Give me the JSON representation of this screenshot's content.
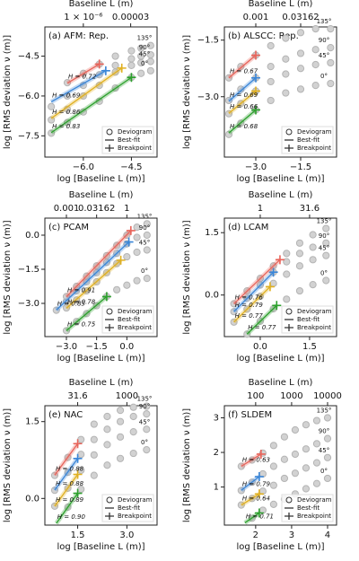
{
  "chart_data": [
    {
      "type": "scatter",
      "title": "(a) AFM: Rep.",
      "x_label": "log [Baseline L (m)]",
      "y_label": "log [RMS deviation ν (m)]",
      "x2_label": "Baseline L (m)",
      "xlim": [
        -7.2,
        -3.7
      ],
      "ylim": [
        -8.3,
        -3.4
      ],
      "xticks": [
        {
          "value": -6,
          "label": "−6.0"
        },
        {
          "value": -4.5,
          "label": "−4.5"
        }
      ],
      "yticks": [
        {
          "value": -4.5,
          "label": "−4.5"
        },
        {
          "value": -6,
          "label": "−6.0"
        },
        {
          "value": -7.5,
          "label": "−7.5"
        }
      ],
      "x2ticks": [
        {
          "value": -6,
          "label": "1 × 10⁻⁶"
        },
        {
          "value": -4.523,
          "label": "0.00003"
        }
      ],
      "x": [
        -7.0,
        -6.5,
        -6.0,
        -5.5,
        -5.0,
        -4.5,
        -4.2,
        -3.9
      ],
      "series": [
        {
          "name": "0°",
          "color": "#2ca02c",
          "values": [
            -7.4,
            -7.0,
            -6.6,
            -6.2,
            -5.7,
            -5.3,
            -5.15,
            -5.05
          ],
          "fit": {
            "x": [
              -7.0,
              -4.5
            ],
            "y": [
              -7.38,
              -5.3
            ]
          },
          "breakpoint": {
            "x": -4.5,
            "y": -5.3
          },
          "h_label": "H = 0.83"
        },
        {
          "name": "45°",
          "color": "#e0b020",
          "values": [
            -6.9,
            -6.5,
            -6.0,
            -5.6,
            -5.1,
            -4.85,
            -4.75,
            -4.7
          ],
          "fit": {
            "x": [
              -7.0,
              -4.8
            ],
            "y": [
              -6.84,
              -4.95
            ]
          },
          "breakpoint": {
            "x": -4.8,
            "y": -4.95
          },
          "h_label": "H = 0.86"
        },
        {
          "name": "90°",
          "color": "#3a86d8",
          "values": [
            -6.4,
            -6.0,
            -5.6,
            -5.2,
            -4.85,
            -4.6,
            -4.5,
            -4.45
          ],
          "fit": {
            "x": [
              -7.0,
              -5.3
            ],
            "y": [
              -6.22,
              -5.05
            ]
          },
          "breakpoint": {
            "x": -5.3,
            "y": -5.05
          },
          "h_label": "H = 0.69"
        },
        {
          "name": "135°",
          "color": "#e8645a",
          "values": [
            null,
            -5.5,
            -5.15,
            -4.8,
            -4.5,
            -4.3,
            -4.2,
            -4.1
          ],
          "fit": {
            "x": [
              -6.5,
              -5.5
            ],
            "y": [
              -5.52,
              -4.8
            ]
          },
          "breakpoint": {
            "x": -5.5,
            "y": -4.8
          },
          "h_label": "H = 0.72"
        }
      ],
      "legend": [
        "Deviogram",
        "Best-fit",
        "Breakpoint"
      ],
      "legend_loc": "lower right"
    },
    {
      "type": "scatter",
      "title": "(b) ALSCC: Rep.",
      "x_label": "log [Baseline L (m)]",
      "y_label": "log [RMS deviation ν (m)]",
      "x2_label": "Baseline L (m)",
      "xlim": [
        -4.05,
        -0.3
      ],
      "ylim": [
        -4.6,
        -1.15
      ],
      "xticks": [
        {
          "value": -3,
          "label": "−3.0"
        },
        {
          "value": -1.5,
          "label": "−1.5"
        }
      ],
      "yticks": [
        {
          "value": -1.5,
          "label": "−1.5"
        },
        {
          "value": -3,
          "label": "−3.0"
        }
      ],
      "x2ticks": [
        {
          "value": -3,
          "label": "0.001"
        },
        {
          "value": -1.5,
          "label": "0.03162"
        }
      ],
      "x": [
        -3.9,
        -3.5,
        -3.0,
        -2.5,
        -2.0,
        -1.5,
        -1.0,
        -0.5
      ],
      "series": [
        {
          "name": "0°",
          "color": "#2ca02c",
          "values": [
            -4.0,
            -3.7,
            -3.35,
            -3.1,
            -2.9,
            -2.8,
            -2.7,
            -2.65
          ],
          "fit": {
            "x": [
              -3.9,
              -3.0
            ],
            "y": [
              -3.96,
              -3.35
            ]
          },
          "breakpoint": {
            "x": -3.0,
            "y": -3.35
          },
          "h_label": "H = 0.68"
        },
        {
          "name": "45°",
          "color": "#e0b020",
          "values": [
            -3.45,
            -3.18,
            -2.85,
            -2.6,
            -2.4,
            -2.25,
            -2.15,
            -2.1
          ],
          "fit": {
            "x": [
              -3.9,
              -3.0
            ],
            "y": [
              -3.44,
              -2.85
            ]
          },
          "breakpoint": {
            "x": -3.0,
            "y": -2.85
          },
          "h_label": "H = 0.66"
        },
        {
          "name": "90°",
          "color": "#3a86d8",
          "values": [
            -3.1,
            -2.8,
            -2.5,
            -2.2,
            -2.0,
            -1.85,
            -1.75,
            -1.7
          ],
          "fit": {
            "x": [
              -3.9,
              -3.0
            ],
            "y": [
              -3.12,
              -2.5
            ]
          },
          "breakpoint": {
            "x": -3.0,
            "y": -2.5
          },
          "h_label": "H = 0.69"
        },
        {
          "name": "135°",
          "color": "#e8645a",
          "values": [
            -2.5,
            -2.2,
            -1.9,
            -1.65,
            -1.45,
            -1.3,
            -1.2,
            -1.2
          ],
          "fit": {
            "x": [
              -3.9,
              -3.0
            ],
            "y": [
              -2.5,
              -1.9
            ]
          },
          "breakpoint": {
            "x": -3.0,
            "y": -1.9
          },
          "h_label": "H = 0.67"
        }
      ],
      "legend": [
        "Deviogram",
        "Best-fit",
        "Breakpoint"
      ],
      "legend_loc": "lower right"
    },
    {
      "type": "scatter",
      "title": "(c) PCAM",
      "x_label": "log [Baseline L (m)]",
      "y_label": "log [RMS deviation ν (m)]",
      "x2_label": "Baseline L (m)",
      "xlim": [
        -4.07,
        1.5
      ],
      "ylim": [
        -4.46,
        0.75
      ],
      "xticks": [
        {
          "value": -3,
          "label": "−3.0"
        },
        {
          "value": -1.5,
          "label": "−1.5"
        },
        {
          "value": 0,
          "label": "0.0"
        }
      ],
      "yticks": [
        {
          "value": 0,
          "label": "0.0"
        },
        {
          "value": -1.5,
          "label": "−1.5"
        },
        {
          "value": -3,
          "label": "−3.0"
        }
      ],
      "x2ticks": [
        {
          "value": -3,
          "label": "0.001"
        },
        {
          "value": -1.5,
          "label": "0.03162"
        },
        {
          "value": 0,
          "label": "1"
        }
      ],
      "x": [
        -3.5,
        -3.0,
        -2.5,
        -2.0,
        -1.5,
        -1.0,
        -0.5,
        0,
        0.5,
        1.0
      ],
      "series": [
        {
          "name": "0°",
          "color": "#2ca02c",
          "values": [
            null,
            -4.2,
            -3.8,
            -3.45,
            -3.1,
            -2.7,
            -2.4,
            -2.2,
            -2.0,
            -1.9
          ],
          "fit": {
            "x": [
              -3.0,
              -1.0
            ],
            "y": [
              -4.2,
              -2.7
            ]
          },
          "breakpoint": {
            "x": -1.0,
            "y": -2.7
          },
          "h_label": "H = 0.75"
        },
        {
          "name": "45°",
          "color": "#e0b020",
          "values": [
            null,
            -3.2,
            -2.85,
            -2.45,
            -2.05,
            -1.65,
            -1.25,
            -0.95,
            -0.75,
            -0.65
          ],
          "fit": {
            "x": [
              -3.0,
              -0.3
            ],
            "y": [
              -3.21,
              -1.1
            ]
          },
          "breakpoint": {
            "x": -0.3,
            "y": -1.1
          },
          "h_label": "H = 0.78"
        },
        {
          "name": "90°",
          "color": "#3a86d8",
          "values": [
            -3.3,
            -2.9,
            -2.45,
            -2.05,
            -1.65,
            -1.2,
            -0.8,
            -0.38,
            -0.1,
            0.0
          ],
          "fit": {
            "x": [
              -3.5,
              0.1
            ],
            "y": [
              -3.29,
              -0.3
            ]
          },
          "breakpoint": {
            "x": 0.1,
            "y": -0.3
          },
          "h_label": "H = 0.83"
        },
        {
          "name": "135°",
          "color": "#e8645a",
          "values": [
            null,
            -2.7,
            -2.25,
            -1.8,
            -1.35,
            -0.9,
            -0.45,
            0.0,
            0.35,
            0.5
          ],
          "fit": {
            "x": [
              -3.0,
              0.2
            ],
            "y": [
              -2.71,
              0.2
            ]
          },
          "breakpoint": {
            "x": 0.2,
            "y": 0.2
          },
          "h_label": "H = 0.91"
        }
      ],
      "legend": [
        "Deviogram",
        "Best-fit",
        "Breakpoint"
      ],
      "legend_loc": "lower right"
    },
    {
      "type": "scatter",
      "title": "(d) LCAM",
      "x_label": "log [Baseline L (m)]",
      "y_label": "log [RMS deviation ν (m)]",
      "x2_label": "Baseline L (m)",
      "xlim": [
        -1.09,
        2.32
      ],
      "ylim": [
        -1.0,
        1.85
      ],
      "xticks": [
        {
          "value": 0,
          "label": "0.0"
        },
        1.5
      ],
      "yticks": [
        1.5,
        {
          "value": 0,
          "label": "0.0"
        }
      ],
      "x2ticks": [
        {
          "value": 0,
          "label": "1"
        },
        {
          "value": 1.5,
          "label": "31.6"
        }
      ],
      "x": [
        -0.8,
        -0.4,
        0,
        0.4,
        0.8,
        1.2,
        1.6,
        2.0
      ],
      "series": [
        {
          "name": "0°",
          "color": "#2ca02c",
          "values": [
            null,
            -0.94,
            -0.63,
            -0.33,
            -0.1,
            0.1,
            0.25,
            0.35
          ],
          "fit": {
            "x": [
              -0.4,
              0.5
            ],
            "y": [
              -0.94,
              -0.25
            ]
          },
          "breakpoint": {
            "x": 0.5,
            "y": -0.25
          },
          "h_label": "H = 0.77"
        },
        {
          "name": "45°",
          "color": "#e0b020",
          "values": [
            -0.65,
            -0.34,
            -0.03,
            0.28,
            0.5,
            0.7,
            0.85,
            0.95
          ],
          "fit": {
            "x": [
              -0.8,
              0.3
            ],
            "y": [
              -0.65,
              0.2
            ]
          },
          "breakpoint": {
            "x": 0.3,
            "y": 0.2
          },
          "h_label": "H = 0.77"
        },
        {
          "name": "90°",
          "color": "#3a86d8",
          "values": [
            -0.4,
            -0.08,
            0.24,
            0.55,
            0.8,
            1.0,
            1.15,
            1.25
          ],
          "fit": {
            "x": [
              -0.8,
              0.4
            ],
            "y": [
              -0.4,
              0.55
            ]
          },
          "breakpoint": {
            "x": 0.4,
            "y": 0.55
          },
          "h_label": "H = 0.79"
        },
        {
          "name": "135°",
          "color": "#e8645a",
          "values": [
            -0.21,
            0.1,
            0.4,
            0.7,
            1.0,
            1.25,
            1.45,
            1.6
          ],
          "fit": {
            "x": [
              -0.8,
              0.6
            ],
            "y": [
              -0.21,
              0.85
            ]
          },
          "breakpoint": {
            "x": 0.6,
            "y": 0.85
          },
          "h_label": "H = 0.76"
        }
      ],
      "legend": [
        "Deviogram",
        "Best-fit",
        "Breakpoint"
      ],
      "legend_loc": "lower right"
    },
    {
      "type": "scatter",
      "title": "(e) NAC",
      "x_label": "log [Baseline L (m)]",
      "y_label": "log [RMS deviation ν (m)]",
      "x2_label": "Baseline L (m)",
      "xlim": [
        0.5,
        3.92
      ],
      "ylim": [
        -0.52,
        1.81
      ],
      "xticks": [
        1.5,
        {
          "value": 3,
          "label": "3.0"
        }
      ],
      "yticks": [
        1.5,
        {
          "value": 0,
          "label": "0.0"
        }
      ],
      "x2ticks": [
        {
          "value": 1.5,
          "label": "31.6"
        },
        {
          "value": 3,
          "label": "1000"
        }
      ],
      "x": [
        0.8,
        1.2,
        1.6,
        2.0,
        2.4,
        2.8,
        3.2,
        3.6
      ],
      "series": [
        {
          "name": "0°",
          "color": "#2ca02c",
          "values": [
            null,
            -0.17,
            0.18,
            0.45,
            0.65,
            0.78,
            0.88,
            0.95
          ],
          "fit": {
            "x": [
              0.85,
              1.5
            ],
            "y": [
              -0.485,
              0.1
            ]
          },
          "breakpoint": {
            "x": 1.5,
            "y": 0.1
          },
          "h_label": "H = 0.90"
        },
        {
          "name": "45°",
          "color": "#e0b020",
          "values": [
            -0.15,
            0.2,
            0.55,
            0.85,
            1.05,
            1.2,
            1.3,
            1.35
          ],
          "fit": {
            "x": [
              0.8,
              1.5
            ],
            "y": [
              -0.153,
              0.47
            ]
          },
          "breakpoint": {
            "x": 1.5,
            "y": 0.47
          },
          "h_label": "H = 0.89"
        },
        {
          "name": "90°",
          "color": "#3a86d8",
          "values": [
            0.16,
            0.51,
            0.86,
            1.15,
            1.35,
            1.5,
            1.6,
            1.65
          ],
          "fit": {
            "x": [
              0.8,
              1.5
            ],
            "y": [
              0.164,
              0.78
            ]
          },
          "breakpoint": {
            "x": 1.5,
            "y": 0.78
          },
          "h_label": "H = 0.88"
        },
        {
          "name": "135°",
          "color": "#e8645a",
          "values": [
            0.45,
            0.8,
            1.15,
            1.45,
            1.6,
            1.72,
            1.78,
            1.8
          ],
          "fit": {
            "x": [
              0.8,
              1.5
            ],
            "y": [
              0.454,
              1.07
            ]
          },
          "breakpoint": {
            "x": 1.5,
            "y": 1.07
          },
          "h_label": "H = 0.88"
        }
      ],
      "legend": [
        "Deviogram",
        "Best-fit",
        "Breakpoint"
      ],
      "legend_loc": "lower right"
    },
    {
      "type": "scatter",
      "title": "(f) SLDEM",
      "x_label": "log [Baseline L (m)]",
      "y_label": "log [RMS deviation ν (m)]",
      "x2_label": "Baseline L (m)",
      "xlim": [
        1.13,
        4.25
      ],
      "ylim": [
        -0.1,
        3.35
      ],
      "xticks": [
        2,
        3,
        4
      ],
      "yticks": [
        3,
        2,
        1
      ],
      "x2ticks": [
        {
          "value": 2,
          "label": "100"
        },
        {
          "value": 3,
          "label": "1000"
        },
        {
          "value": 4,
          "label": "10000"
        }
      ],
      "x": [
        1.6,
        1.9,
        2.2,
        2.5,
        2.8,
        3.1,
        3.4,
        3.7,
        4.0
      ],
      "series": [
        {
          "name": "0°",
          "color": "#2ca02c",
          "values": [
            null,
            0.1,
            0.33,
            0.5,
            0.65,
            0.8,
            0.95,
            1.1,
            1.25
          ],
          "fit": {
            "x": [
              1.7,
              2.1
            ],
            "y": [
              -0.034,
              0.25
            ]
          },
          "breakpoint": {
            "x": 2.1,
            "y": 0.25
          },
          "h_label": "H = 0.71"
        },
        {
          "name": "45°",
          "color": "#e0b020",
          "values": [
            0.48,
            0.67,
            0.88,
            1.05,
            1.25,
            1.4,
            1.55,
            1.7,
            1.85
          ],
          "fit": {
            "x": [
              1.6,
              2.1
            ],
            "y": [
              0.48,
              0.8
            ]
          },
          "breakpoint": {
            "x": 2.1,
            "y": 0.8
          },
          "h_label": "H = 0.64"
        },
        {
          "name": "90°",
          "color": "#3a86d8",
          "values": [
            0.9,
            1.14,
            1.38,
            1.6,
            1.8,
            1.95,
            2.1,
            2.25,
            2.4
          ],
          "fit": {
            "x": [
              1.6,
              2.1
            ],
            "y": [
              0.905,
              1.3
            ]
          },
          "breakpoint": {
            "x": 2.1,
            "y": 1.3
          },
          "h_label": "H = 0.79"
        },
        {
          "name": "135°",
          "color": "#e8645a",
          "values": [
            1.6,
            1.78,
            1.98,
            2.2,
            2.45,
            2.65,
            2.8,
            2.92,
            3.0
          ],
          "fit": {
            "x": [
              1.6,
              2.15
            ],
            "y": [
              1.6,
              1.95
            ]
          },
          "breakpoint": {
            "x": 2.15,
            "y": 1.95
          },
          "h_label": "H = 0.63"
        }
      ],
      "legend": [
        "Deviogram",
        "Best-fit",
        "Breakpoint"
      ],
      "legend_loc": "lower right"
    }
  ]
}
